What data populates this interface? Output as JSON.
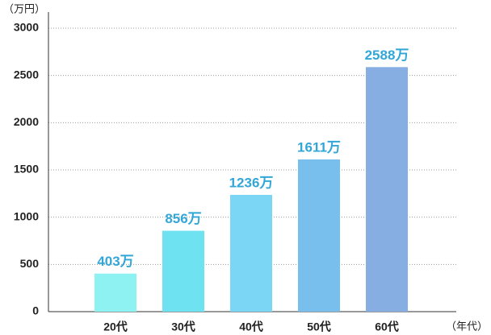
{
  "chart_data": {
    "type": "bar",
    "y_axis_label": "（万円）",
    "x_axis_label": "（年代）",
    "categories": [
      "20代",
      "30代",
      "40代",
      "50代",
      "60代"
    ],
    "values": [
      403,
      856,
      1236,
      1611,
      2588
    ],
    "value_labels": [
      "403万",
      "856万",
      "1236万",
      "1611万",
      "2588万"
    ],
    "colors": [
      "#8ef1f2",
      "#6fe2f2",
      "#7bd6f5",
      "#79bfee",
      "#86aee2"
    ],
    "label_color": "#33a6d8",
    "ylim": [
      0,
      3000
    ],
    "yticks": [
      0,
      500,
      1000,
      1500,
      2000,
      2500,
      3000
    ],
    "grid": true
  }
}
